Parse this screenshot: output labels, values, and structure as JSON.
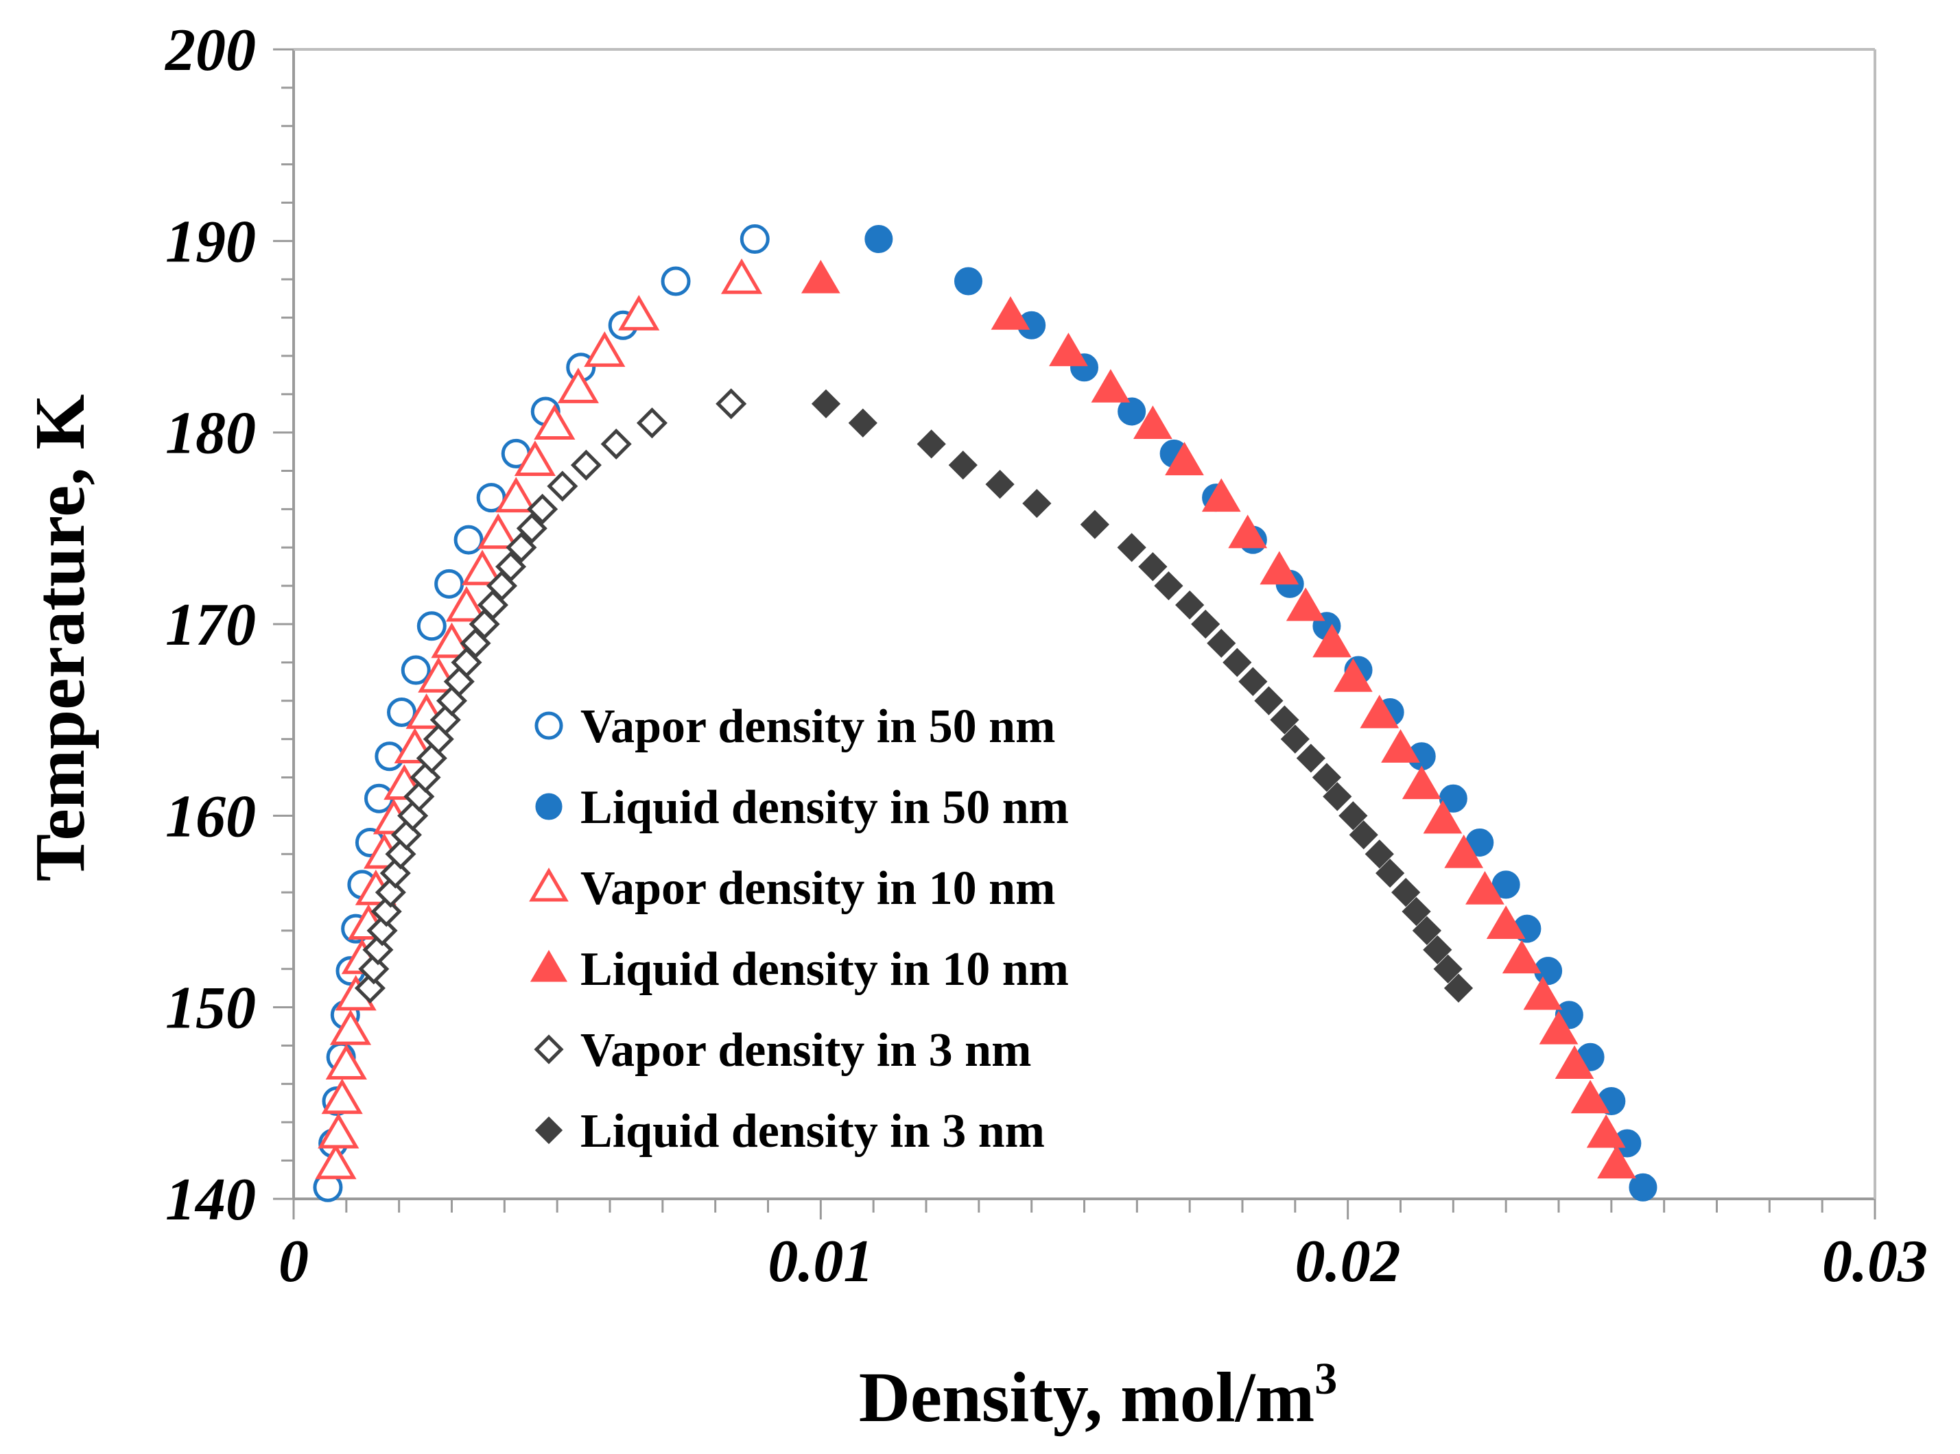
{
  "chart_data": {
    "type": "scatter",
    "title": "",
    "xlabel": "Density, mol/m",
    "xlabel_superscript": "3",
    "ylabel": "Temperature, K",
    "xlim": [
      0,
      0.03
    ],
    "ylim": [
      140,
      200
    ],
    "x_ticks": [
      "0",
      "0.01",
      "0.02",
      "0.03"
    ],
    "y_ticks": [
      "140",
      "150",
      "160",
      "170",
      "180",
      "190",
      "200"
    ],
    "grid": false,
    "legend_position": "center-left",
    "series": [
      {
        "name": "Vapor density in 50 nm",
        "marker": "circle-open",
        "color": "#1F77C4",
        "points": [
          [
            0.00065,
            140.6
          ],
          [
            0.00075,
            142.9
          ],
          [
            0.00082,
            145.1
          ],
          [
            0.0009,
            147.4
          ],
          [
            0.00098,
            149.6
          ],
          [
            0.00108,
            151.9
          ],
          [
            0.00118,
            154.1
          ],
          [
            0.0013,
            156.4
          ],
          [
            0.00145,
            158.6
          ],
          [
            0.00162,
            160.9
          ],
          [
            0.00182,
            163.1
          ],
          [
            0.00205,
            165.4
          ],
          [
            0.00232,
            167.6
          ],
          [
            0.00262,
            169.9
          ],
          [
            0.00295,
            172.1
          ],
          [
            0.00332,
            174.4
          ],
          [
            0.00375,
            176.6
          ],
          [
            0.00422,
            178.9
          ],
          [
            0.00478,
            181.1
          ],
          [
            0.00545,
            183.4
          ],
          [
            0.00625,
            185.6
          ],
          [
            0.00725,
            187.9
          ],
          [
            0.00875,
            190.1
          ]
        ]
      },
      {
        "name": "Liquid density in 50 nm",
        "marker": "circle-filled",
        "color": "#1F77C4",
        "points": [
          [
            0.0256,
            140.6
          ],
          [
            0.0253,
            142.9
          ],
          [
            0.025,
            145.1
          ],
          [
            0.0246,
            147.4
          ],
          [
            0.0242,
            149.6
          ],
          [
            0.0238,
            151.9
          ],
          [
            0.0234,
            154.1
          ],
          [
            0.023,
            156.4
          ],
          [
            0.0225,
            158.6
          ],
          [
            0.022,
            160.9
          ],
          [
            0.0214,
            163.1
          ],
          [
            0.0208,
            165.4
          ],
          [
            0.0202,
            167.6
          ],
          [
            0.0196,
            169.9
          ],
          [
            0.0189,
            172.1
          ],
          [
            0.0182,
            174.4
          ],
          [
            0.0175,
            176.6
          ],
          [
            0.0167,
            178.9
          ],
          [
            0.0159,
            181.1
          ],
          [
            0.015,
            183.4
          ],
          [
            0.014,
            185.6
          ],
          [
            0.0128,
            187.9
          ],
          [
            0.0111,
            190.1
          ]
        ]
      },
      {
        "name": "Vapor density in 10 nm",
        "marker": "triangle-open",
        "color": "#FF5050",
        "points": [
          [
            0.0008,
            141.8
          ],
          [
            0.00085,
            143.4
          ],
          [
            0.00092,
            145.2
          ],
          [
            0.001,
            147.0
          ],
          [
            0.00108,
            148.8
          ],
          [
            0.00118,
            150.6
          ],
          [
            0.0013,
            152.5
          ],
          [
            0.00142,
            154.3
          ],
          [
            0.00156,
            156.1
          ],
          [
            0.00172,
            158.0
          ],
          [
            0.0019,
            159.8
          ],
          [
            0.0021,
            161.6
          ],
          [
            0.0023,
            163.5
          ],
          [
            0.00252,
            165.3
          ],
          [
            0.00275,
            167.2
          ],
          [
            0.003,
            169.0
          ],
          [
            0.00328,
            170.9
          ],
          [
            0.00358,
            172.8
          ],
          [
            0.00388,
            174.7
          ],
          [
            0.00422,
            176.6
          ],
          [
            0.00458,
            178.5
          ],
          [
            0.00495,
            180.4
          ],
          [
            0.0054,
            182.3
          ],
          [
            0.0059,
            184.2
          ],
          [
            0.00655,
            186.1
          ],
          [
            0.0085,
            188.0
          ]
        ]
      },
      {
        "name": "Liquid density in 10 nm",
        "marker": "triangle-filled",
        "color": "#FF5050",
        "points": [
          [
            0.0251,
            141.8
          ],
          [
            0.0249,
            143.4
          ],
          [
            0.0246,
            145.2
          ],
          [
            0.0243,
            147.0
          ],
          [
            0.024,
            148.8
          ],
          [
            0.0237,
            150.6
          ],
          [
            0.0233,
            152.5
          ],
          [
            0.023,
            154.3
          ],
          [
            0.0226,
            156.1
          ],
          [
            0.0222,
            158.0
          ],
          [
            0.0218,
            159.8
          ],
          [
            0.0214,
            161.6
          ],
          [
            0.021,
            163.5
          ],
          [
            0.0206,
            165.3
          ],
          [
            0.0201,
            167.2
          ],
          [
            0.0197,
            169.0
          ],
          [
            0.0192,
            170.9
          ],
          [
            0.0187,
            172.8
          ],
          [
            0.0181,
            174.7
          ],
          [
            0.0176,
            176.6
          ],
          [
            0.0169,
            178.5
          ],
          [
            0.0163,
            180.4
          ],
          [
            0.0155,
            182.3
          ],
          [
            0.0147,
            184.2
          ],
          [
            0.0136,
            186.1
          ],
          [
            0.01,
            188.0
          ]
        ]
      },
      {
        "name": "Vapor density in 3 nm",
        "marker": "diamond-open",
        "color": "#404040",
        "points": [
          [
            0.00145,
            151.0
          ],
          [
            0.00152,
            152.0
          ],
          [
            0.0016,
            153.0
          ],
          [
            0.00168,
            154.0
          ],
          [
            0.00176,
            155.0
          ],
          [
            0.00184,
            156.0
          ],
          [
            0.00193,
            157.0
          ],
          [
            0.00203,
            158.0
          ],
          [
            0.00214,
            159.0
          ],
          [
            0.00226,
            160.0
          ],
          [
            0.00238,
            161.0
          ],
          [
            0.0025,
            162.0
          ],
          [
            0.00262,
            163.0
          ],
          [
            0.00275,
            164.0
          ],
          [
            0.00288,
            165.0
          ],
          [
            0.003,
            166.0
          ],
          [
            0.00314,
            167.0
          ],
          [
            0.00328,
            168.0
          ],
          [
            0.00345,
            169.0
          ],
          [
            0.00362,
            170.0
          ],
          [
            0.00378,
            171.0
          ],
          [
            0.00395,
            172.0
          ],
          [
            0.00412,
            173.0
          ],
          [
            0.00432,
            174.0
          ],
          [
            0.00452,
            175.0
          ],
          [
            0.00472,
            176.0
          ],
          [
            0.0051,
            177.2
          ],
          [
            0.00555,
            178.3
          ],
          [
            0.00612,
            179.4
          ],
          [
            0.0068,
            180.5
          ],
          [
            0.0083,
            181.5
          ]
        ]
      },
      {
        "name": "Liquid density in 3 nm",
        "marker": "diamond-filled",
        "color": "#404040",
        "points": [
          [
            0.0221,
            151.0
          ],
          [
            0.0219,
            152.0
          ],
          [
            0.0217,
            153.0
          ],
          [
            0.0215,
            154.0
          ],
          [
            0.0213,
            155.0
          ],
          [
            0.0211,
            156.0
          ],
          [
            0.0208,
            157.0
          ],
          [
            0.0206,
            158.0
          ],
          [
            0.0203,
            159.0
          ],
          [
            0.0201,
            160.0
          ],
          [
            0.0198,
            161.0
          ],
          [
            0.0196,
            162.0
          ],
          [
            0.0193,
            163.0
          ],
          [
            0.019,
            164.0
          ],
          [
            0.0188,
            165.0
          ],
          [
            0.0185,
            166.0
          ],
          [
            0.0182,
            167.0
          ],
          [
            0.0179,
            168.0
          ],
          [
            0.0176,
            169.0
          ],
          [
            0.0173,
            170.0
          ],
          [
            0.017,
            171.0
          ],
          [
            0.0166,
            172.0
          ],
          [
            0.0163,
            173.0
          ],
          [
            0.0159,
            174.0
          ],
          [
            0.0152,
            175.2
          ],
          [
            0.0141,
            176.3
          ],
          [
            0.0134,
            177.3
          ],
          [
            0.0127,
            178.3
          ],
          [
            0.0121,
            179.4
          ],
          [
            0.0108,
            180.5
          ],
          [
            0.0101,
            181.5
          ]
        ]
      }
    ]
  }
}
